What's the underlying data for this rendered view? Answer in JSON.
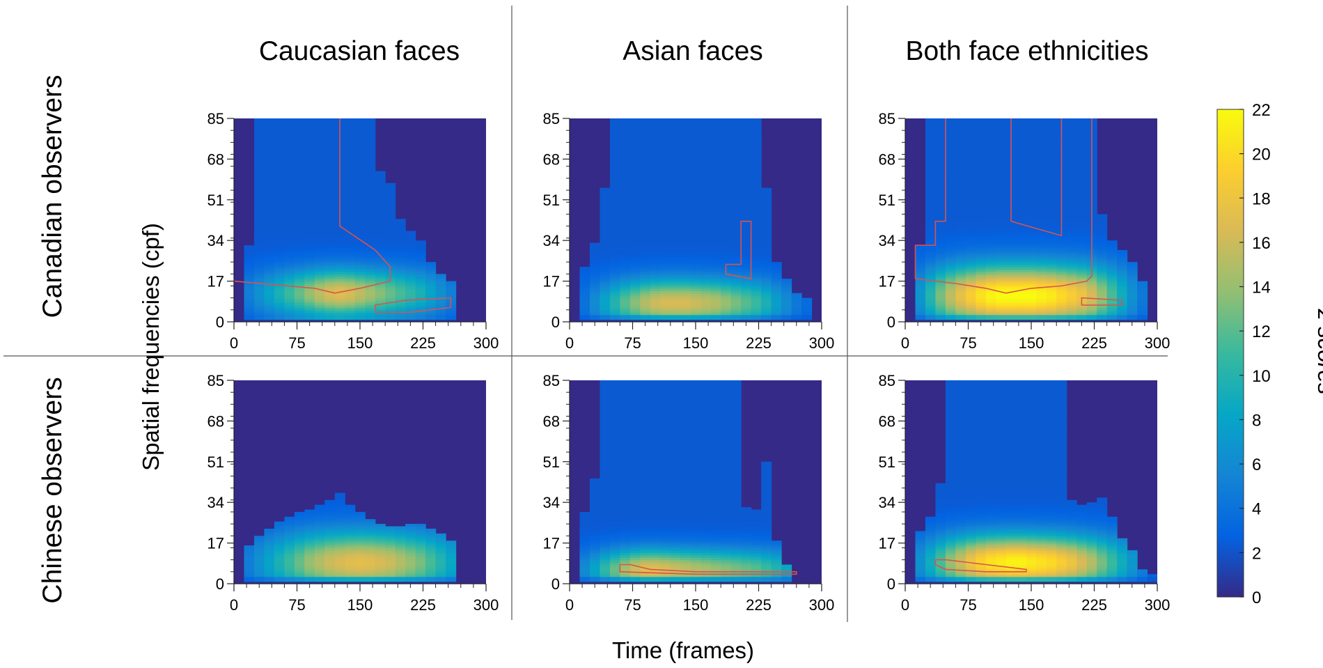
{
  "chart_data": {
    "type": "heatmap",
    "column_titles": [
      "Caucasian faces",
      "Asian faces",
      "Both face ethnicities"
    ],
    "row_titles": [
      "Canadian observers",
      "Chinese observers"
    ],
    "xlabel": "Time (frames)",
    "ylabel": "Spatial frequencies (cpf)",
    "colorbar": {
      "label": "z scores",
      "range": [
        0,
        22
      ],
      "ticks": [
        "0",
        "2",
        "4",
        "6",
        "8",
        "10",
        "12",
        "14",
        "16",
        "18",
        "20",
        "22"
      ],
      "colors": [
        "#352a87",
        "#0363e1",
        "#1485d4",
        "#06a7c6",
        "#38b99e",
        "#92bf73",
        "#d9ba56",
        "#fcce2e",
        "#f9fb0e"
      ]
    },
    "x": {
      "range": [
        0,
        300
      ],
      "ticks": [
        "0",
        "75",
        "150",
        "225",
        "300"
      ],
      "columns": [
        0,
        12,
        24,
        36,
        48,
        60,
        72,
        84,
        96,
        108,
        120,
        132,
        144,
        156,
        168,
        180,
        192,
        204,
        216,
        228,
        240,
        252,
        264,
        276,
        288
      ]
    },
    "y": {
      "range": [
        0,
        85
      ],
      "ticks": [
        "0",
        "17",
        "34",
        "51",
        "68",
        "85"
      ]
    },
    "contour_color": "#d9534f",
    "panels": [
      {
        "name": "canadian-caucasian",
        "observers": "Canadian observers",
        "faces": "Caucasian faces",
        "peak_sf": 12,
        "peak_width": 7,
        "col_peak": [
          3.5,
          5,
          6.5,
          8,
          9.5,
          11,
          12.5,
          14,
          15.5,
          16.5,
          17,
          16.5,
          15.5,
          14.5,
          13.5,
          12.5,
          11.5,
          10.5,
          9.5,
          8,
          6.5,
          5,
          4,
          0,
          0
        ],
        "col_top": [
          0,
          32,
          85,
          85,
          85,
          85,
          85,
          85,
          85,
          85,
          85,
          85,
          85,
          85,
          63,
          58,
          43,
          38,
          34,
          25,
          20,
          17,
          0,
          0,
          0
        ],
        "contours": [
          [
            [
              0,
              18
            ],
            [
              0,
              17
            ],
            [
              96,
              14
            ],
            [
              120,
              12
            ],
            [
              150,
              14
            ],
            [
              186,
              17
            ],
            [
              186,
              23
            ],
            [
              168,
              30
            ],
            [
              126,
              40
            ],
            [
              126,
              85
            ]
          ],
          [
            [
              168,
              4
            ],
            [
              168,
              7
            ],
            [
              204,
              9
            ],
            [
              258,
              10
            ],
            [
              258,
              6
            ],
            [
              210,
              4
            ],
            [
              168,
              4
            ]
          ]
        ]
      },
      {
        "name": "chinese-caucasian",
        "observers": "Chinese observers",
        "faces": "Caucasian faces",
        "peak_sf": 9,
        "peak_width": 9,
        "col_peak": [
          4,
          5,
          6.5,
          8,
          9.5,
          11,
          12.5,
          14,
          15,
          16,
          16.5,
          17,
          17.2,
          17,
          16.5,
          16,
          15,
          14,
          13,
          11.5,
          10,
          8.5,
          7,
          0,
          0
        ],
        "col_top": [
          0,
          16,
          20,
          23,
          26,
          28,
          30,
          31,
          33,
          35,
          38,
          33,
          30,
          27,
          25,
          24,
          24,
          25,
          25,
          23,
          21,
          18,
          0,
          0,
          0
        ],
        "contours": []
      },
      {
        "name": "canadian-asian",
        "observers": "Canadian observers",
        "faces": "Asian faces",
        "peak_sf": 8,
        "peak_width": 7,
        "col_peak": [
          0,
          4,
          6,
          8,
          10,
          12,
          13.5,
          15,
          16,
          16.5,
          16.5,
          16.5,
          16,
          15.5,
          15,
          14,
          13,
          12,
          11,
          9.5,
          7.5,
          6,
          4.5,
          3.5,
          3
        ],
        "col_top": [
          0,
          23,
          33,
          56,
          85,
          85,
          85,
          85,
          85,
          85,
          85,
          85,
          85,
          85,
          85,
          85,
          85,
          85,
          85,
          56,
          25,
          18,
          12,
          10,
          0
        ],
        "contours": [
          [
            [
              186,
              24
            ],
            [
              186,
              20
            ],
            [
              216,
              18
            ],
            [
              216,
              42
            ],
            [
              204,
              42
            ],
            [
              204,
              24
            ],
            [
              186,
              24
            ]
          ]
        ]
      },
      {
        "name": "chinese-asian",
        "observers": "Chinese observers",
        "faces": "Asian faces",
        "peak_sf": 6,
        "peak_width": 6,
        "col_peak": [
          3,
          6,
          8,
          10.5,
          12.5,
          14.5,
          16,
          17,
          17,
          16.5,
          16,
          15.5,
          15,
          14.5,
          14,
          13.5,
          13,
          12.5,
          12,
          11,
          10,
          8.5,
          6.5,
          4,
          0
        ],
        "col_top": [
          0,
          30,
          44,
          85,
          85,
          85,
          85,
          85,
          85,
          85,
          85,
          85,
          85,
          85,
          85,
          85,
          85,
          32,
          31,
          51,
          18,
          8,
          0,
          0,
          0
        ],
        "contours": [
          [
            [
              60,
              8
            ],
            [
              72,
              8
            ],
            [
              96,
              6
            ],
            [
              150,
              5
            ],
            [
              210,
              5
            ],
            [
              270,
              5
            ],
            [
              270,
              4
            ],
            [
              150,
              4
            ],
            [
              60,
              5
            ],
            [
              60,
              8
            ]
          ]
        ]
      },
      {
        "name": "canadian-both",
        "observers": "Canadian observers",
        "faces": "Both face ethnicities",
        "peak_sf": 11,
        "peak_width": 9,
        "col_peak": [
          4,
          7,
          10,
          13,
          15.5,
          17.5,
          19,
          20.5,
          21.5,
          22,
          22,
          22,
          22,
          21.5,
          21,
          20,
          19,
          18,
          16.5,
          14,
          11.5,
          9,
          6.5,
          4.5,
          0
        ],
        "col_top": [
          0,
          32,
          85,
          85,
          85,
          85,
          85,
          85,
          85,
          85,
          85,
          85,
          85,
          85,
          85,
          85,
          85,
          85,
          85,
          45,
          34,
          30,
          25,
          17,
          0
        ],
        "contours": [
          [
            [
              12,
              32
            ],
            [
              36,
              32
            ],
            [
              36,
              42
            ],
            [
              48,
              42
            ],
            [
              48,
              85
            ]
          ],
          [
            [
              12,
              32
            ],
            [
              12,
              18
            ],
            [
              60,
              16
            ],
            [
              96,
              14
            ],
            [
              120,
              12
            ],
            [
              150,
              14
            ],
            [
              186,
              15
            ],
            [
              216,
              17
            ],
            [
              222,
              19
            ],
            [
              222,
              85
            ]
          ],
          [
            [
              126,
              85
            ],
            [
              126,
              42
            ],
            [
              156,
              39
            ],
            [
              186,
              36
            ],
            [
              186,
              85
            ]
          ],
          [
            [
              210,
              7
            ],
            [
              210,
              10
            ],
            [
              258,
              9
            ],
            [
              258,
              7
            ],
            [
              210,
              7
            ]
          ]
        ]
      },
      {
        "name": "chinese-both",
        "observers": "Chinese observers",
        "faces": "Both face ethnicities",
        "peak_sf": 9,
        "peak_width": 8,
        "col_peak": [
          4,
          6.5,
          9,
          11.5,
          14,
          16,
          18,
          19.5,
          20.5,
          21,
          21.5,
          21.5,
          21,
          20.5,
          20,
          19,
          18,
          16.5,
          15,
          13,
          11,
          9,
          7,
          5,
          3
        ],
        "col_top": [
          0,
          22,
          28,
          42,
          85,
          85,
          85,
          85,
          85,
          85,
          85,
          85,
          85,
          85,
          85,
          85,
          35,
          33,
          34,
          36,
          28,
          19,
          14,
          6,
          4
        ],
        "contours": [
          [
            [
              36,
              10
            ],
            [
              48,
              10
            ],
            [
              96,
              8
            ],
            [
              144,
              6
            ],
            [
              144,
              5
            ],
            [
              96,
              5
            ],
            [
              48,
              6
            ],
            [
              36,
              8
            ],
            [
              36,
              10
            ]
          ]
        ]
      }
    ]
  }
}
